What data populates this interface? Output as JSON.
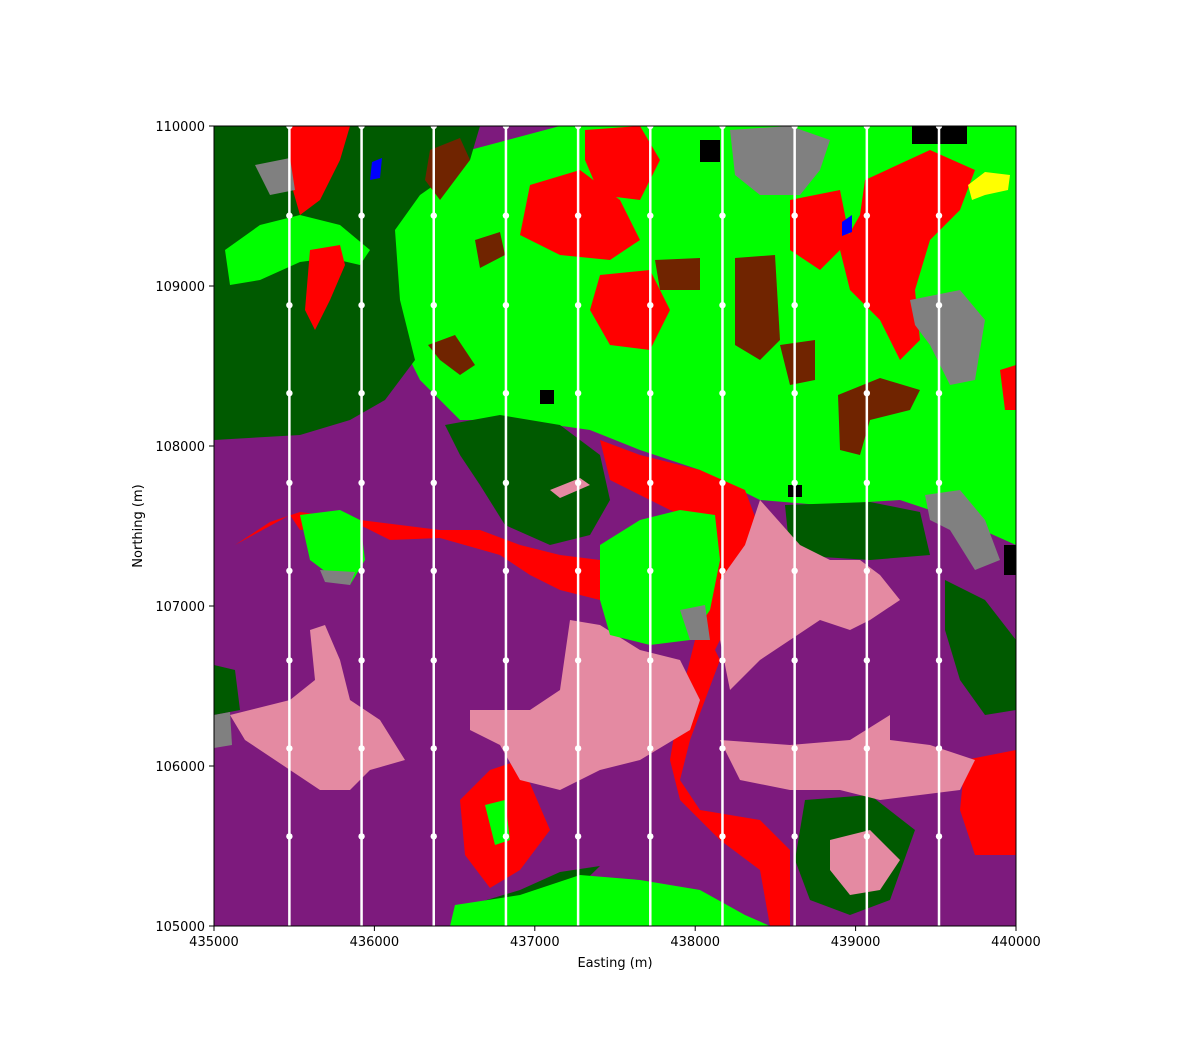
{
  "chart_data": {
    "type": "map",
    "xlabel": "Easting (m)",
    "ylabel": "Northing (m)",
    "xlim": [
      435000,
      440000
    ],
    "ylim": [
      105000,
      110000
    ],
    "x_ticks": [
      435000,
      436000,
      437000,
      438000,
      439000,
      440000
    ],
    "y_ticks": [
      105000,
      106000,
      107000,
      108000,
      109000,
      110000
    ],
    "x_tick_labels": [
      "435000",
      "436000",
      "437000",
      "438000",
      "439000",
      "440000"
    ],
    "y_tick_labels": [
      "105000",
      "106000",
      "107000",
      "108000",
      "109000",
      "110000"
    ],
    "grid": false,
    "land_cover_colors": {
      "purple": "#7d1a7d",
      "pink": "#e48aa2",
      "red": "#ff0000",
      "bright_green": "#00ff00",
      "dark_green": "#005a00",
      "brown": "#702400",
      "gray": "#808080",
      "black": "#000000",
      "blue": "#0000ff",
      "yellow": "#ffff00"
    },
    "flight_lines": {
      "color": "#ffffff",
      "x": [
        435470,
        435920,
        436370,
        436820,
        437270,
        437720,
        438170,
        438620,
        439070,
        439520
      ],
      "sample_y": [
        105560,
        106110,
        106660,
        107220,
        107770,
        108330,
        108880,
        109440,
        110000
      ]
    }
  }
}
